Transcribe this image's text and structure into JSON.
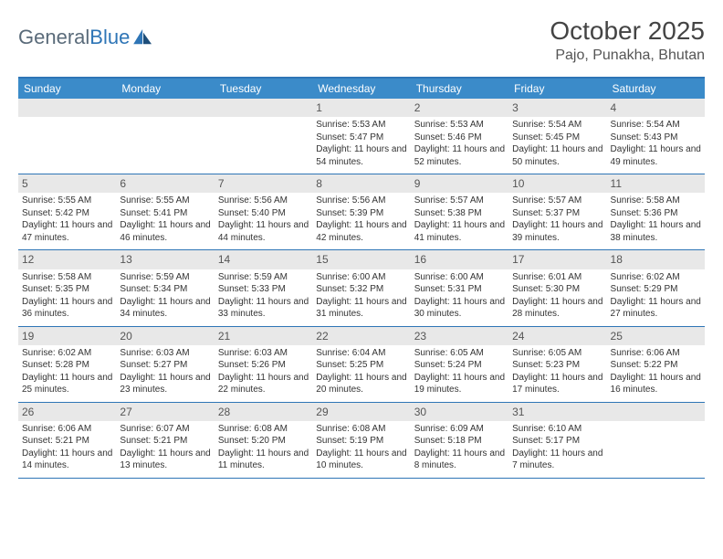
{
  "logo": {
    "text1": "General",
    "text2": "Blue"
  },
  "title": "October 2025",
  "location": "Pajo, Punakha, Bhutan",
  "colors": {
    "header_bg": "#3b8bc9",
    "border": "#2e75b6",
    "daynum_bg": "#e8e8e8",
    "text": "#333333"
  },
  "day_names": [
    "Sunday",
    "Monday",
    "Tuesday",
    "Wednesday",
    "Thursday",
    "Friday",
    "Saturday"
  ],
  "weeks": [
    [
      null,
      null,
      null,
      {
        "d": "1",
        "sr": "Sunrise: 5:53 AM",
        "ss": "Sunset: 5:47 PM",
        "dl": "Daylight: 11 hours and 54 minutes."
      },
      {
        "d": "2",
        "sr": "Sunrise: 5:53 AM",
        "ss": "Sunset: 5:46 PM",
        "dl": "Daylight: 11 hours and 52 minutes."
      },
      {
        "d": "3",
        "sr": "Sunrise: 5:54 AM",
        "ss": "Sunset: 5:45 PM",
        "dl": "Daylight: 11 hours and 50 minutes."
      },
      {
        "d": "4",
        "sr": "Sunrise: 5:54 AM",
        "ss": "Sunset: 5:43 PM",
        "dl": "Daylight: 11 hours and 49 minutes."
      }
    ],
    [
      {
        "d": "5",
        "sr": "Sunrise: 5:55 AM",
        "ss": "Sunset: 5:42 PM",
        "dl": "Daylight: 11 hours and 47 minutes."
      },
      {
        "d": "6",
        "sr": "Sunrise: 5:55 AM",
        "ss": "Sunset: 5:41 PM",
        "dl": "Daylight: 11 hours and 46 minutes."
      },
      {
        "d": "7",
        "sr": "Sunrise: 5:56 AM",
        "ss": "Sunset: 5:40 PM",
        "dl": "Daylight: 11 hours and 44 minutes."
      },
      {
        "d": "8",
        "sr": "Sunrise: 5:56 AM",
        "ss": "Sunset: 5:39 PM",
        "dl": "Daylight: 11 hours and 42 minutes."
      },
      {
        "d": "9",
        "sr": "Sunrise: 5:57 AM",
        "ss": "Sunset: 5:38 PM",
        "dl": "Daylight: 11 hours and 41 minutes."
      },
      {
        "d": "10",
        "sr": "Sunrise: 5:57 AM",
        "ss": "Sunset: 5:37 PM",
        "dl": "Daylight: 11 hours and 39 minutes."
      },
      {
        "d": "11",
        "sr": "Sunrise: 5:58 AM",
        "ss": "Sunset: 5:36 PM",
        "dl": "Daylight: 11 hours and 38 minutes."
      }
    ],
    [
      {
        "d": "12",
        "sr": "Sunrise: 5:58 AM",
        "ss": "Sunset: 5:35 PM",
        "dl": "Daylight: 11 hours and 36 minutes."
      },
      {
        "d": "13",
        "sr": "Sunrise: 5:59 AM",
        "ss": "Sunset: 5:34 PM",
        "dl": "Daylight: 11 hours and 34 minutes."
      },
      {
        "d": "14",
        "sr": "Sunrise: 5:59 AM",
        "ss": "Sunset: 5:33 PM",
        "dl": "Daylight: 11 hours and 33 minutes."
      },
      {
        "d": "15",
        "sr": "Sunrise: 6:00 AM",
        "ss": "Sunset: 5:32 PM",
        "dl": "Daylight: 11 hours and 31 minutes."
      },
      {
        "d": "16",
        "sr": "Sunrise: 6:00 AM",
        "ss": "Sunset: 5:31 PM",
        "dl": "Daylight: 11 hours and 30 minutes."
      },
      {
        "d": "17",
        "sr": "Sunrise: 6:01 AM",
        "ss": "Sunset: 5:30 PM",
        "dl": "Daylight: 11 hours and 28 minutes."
      },
      {
        "d": "18",
        "sr": "Sunrise: 6:02 AM",
        "ss": "Sunset: 5:29 PM",
        "dl": "Daylight: 11 hours and 27 minutes."
      }
    ],
    [
      {
        "d": "19",
        "sr": "Sunrise: 6:02 AM",
        "ss": "Sunset: 5:28 PM",
        "dl": "Daylight: 11 hours and 25 minutes."
      },
      {
        "d": "20",
        "sr": "Sunrise: 6:03 AM",
        "ss": "Sunset: 5:27 PM",
        "dl": "Daylight: 11 hours and 23 minutes."
      },
      {
        "d": "21",
        "sr": "Sunrise: 6:03 AM",
        "ss": "Sunset: 5:26 PM",
        "dl": "Daylight: 11 hours and 22 minutes."
      },
      {
        "d": "22",
        "sr": "Sunrise: 6:04 AM",
        "ss": "Sunset: 5:25 PM",
        "dl": "Daylight: 11 hours and 20 minutes."
      },
      {
        "d": "23",
        "sr": "Sunrise: 6:05 AM",
        "ss": "Sunset: 5:24 PM",
        "dl": "Daylight: 11 hours and 19 minutes."
      },
      {
        "d": "24",
        "sr": "Sunrise: 6:05 AM",
        "ss": "Sunset: 5:23 PM",
        "dl": "Daylight: 11 hours and 17 minutes."
      },
      {
        "d": "25",
        "sr": "Sunrise: 6:06 AM",
        "ss": "Sunset: 5:22 PM",
        "dl": "Daylight: 11 hours and 16 minutes."
      }
    ],
    [
      {
        "d": "26",
        "sr": "Sunrise: 6:06 AM",
        "ss": "Sunset: 5:21 PM",
        "dl": "Daylight: 11 hours and 14 minutes."
      },
      {
        "d": "27",
        "sr": "Sunrise: 6:07 AM",
        "ss": "Sunset: 5:21 PM",
        "dl": "Daylight: 11 hours and 13 minutes."
      },
      {
        "d": "28",
        "sr": "Sunrise: 6:08 AM",
        "ss": "Sunset: 5:20 PM",
        "dl": "Daylight: 11 hours and 11 minutes."
      },
      {
        "d": "29",
        "sr": "Sunrise: 6:08 AM",
        "ss": "Sunset: 5:19 PM",
        "dl": "Daylight: 11 hours and 10 minutes."
      },
      {
        "d": "30",
        "sr": "Sunrise: 6:09 AM",
        "ss": "Sunset: 5:18 PM",
        "dl": "Daylight: 11 hours and 8 minutes."
      },
      {
        "d": "31",
        "sr": "Sunrise: 6:10 AM",
        "ss": "Sunset: 5:17 PM",
        "dl": "Daylight: 11 hours and 7 minutes."
      },
      null
    ]
  ]
}
